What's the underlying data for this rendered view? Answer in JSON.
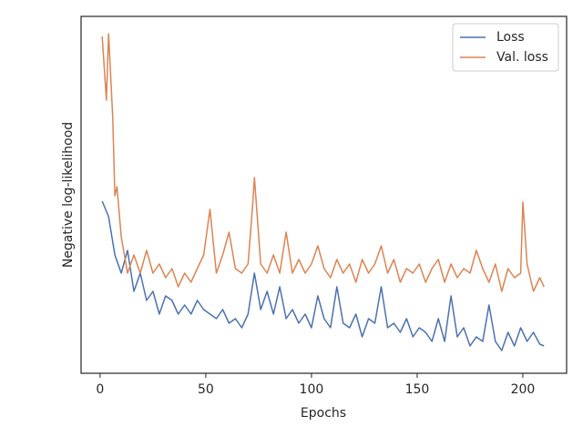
{
  "chart_data": {
    "type": "line",
    "xlabel": "Epochs",
    "ylabel": "Negative log-likelihood",
    "xlim": [
      -9,
      220.7
    ],
    "xticks": [
      0,
      50,
      100,
      150,
      200
    ],
    "ylim": [
      0,
      392
    ],
    "legend": "upper right",
    "series": [
      {
        "name": "Loss",
        "color": "#4c72b0",
        "x": [
          1,
          4,
          7,
          10,
          13,
          16,
          19,
          22,
          25,
          28,
          31,
          34,
          37,
          40,
          43,
          46,
          49,
          52,
          55,
          58,
          61,
          64,
          67,
          70,
          73,
          76,
          79,
          82,
          85,
          88,
          91,
          94,
          97,
          100,
          103,
          106,
          109,
          112,
          115,
          118,
          121,
          124,
          127,
          130,
          133,
          136,
          139,
          142,
          145,
          148,
          151,
          154,
          157,
          160,
          163,
          166,
          169,
          172,
          175,
          178,
          181,
          184,
          187,
          190,
          193,
          196,
          199,
          202,
          205,
          208,
          210
        ],
        "values": [
          189,
          172,
          130,
          110,
          135,
          90,
          110,
          80,
          90,
          65,
          85,
          80,
          65,
          75,
          65,
          80,
          70,
          65,
          60,
          70,
          55,
          60,
          50,
          65,
          110,
          70,
          90,
          65,
          95,
          60,
          70,
          55,
          65,
          50,
          85,
          60,
          50,
          95,
          55,
          50,
          65,
          40,
          60,
          55,
          95,
          50,
          55,
          45,
          60,
          40,
          50,
          45,
          35,
          60,
          35,
          85,
          40,
          50,
          30,
          40,
          35,
          75,
          35,
          25,
          45,
          30,
          50,
          35,
          45,
          32,
          30
        ]
      },
      {
        "name": "Val. loss",
        "color": "#dd8452",
        "x": [
          1,
          3,
          4,
          6,
          7,
          8,
          10,
          13,
          16,
          19,
          22,
          25,
          28,
          31,
          34,
          37,
          40,
          43,
          46,
          49,
          52,
          55,
          58,
          61,
          64,
          67,
          70,
          72,
          73,
          76,
          79,
          82,
          85,
          88,
          91,
          94,
          97,
          100,
          103,
          106,
          109,
          112,
          115,
          118,
          121,
          124,
          127,
          130,
          133,
          136,
          139,
          142,
          145,
          148,
          151,
          154,
          157,
          160,
          163,
          166,
          169,
          172,
          175,
          178,
          181,
          184,
          187,
          190,
          193,
          196,
          199,
          200,
          202,
          205,
          208,
          210
        ],
        "values": [
          370,
          300,
          373,
          280,
          195,
          205,
          150,
          110,
          130,
          110,
          135,
          110,
          120,
          105,
          115,
          95,
          110,
          100,
          115,
          130,
          180,
          110,
          130,
          155,
          115,
          110,
          120,
          180,
          215,
          120,
          110,
          130,
          110,
          155,
          110,
          125,
          110,
          120,
          140,
          115,
          105,
          125,
          110,
          120,
          100,
          125,
          110,
          120,
          140,
          110,
          125,
          100,
          115,
          110,
          120,
          100,
          115,
          125,
          100,
          120,
          105,
          115,
          110,
          135,
          115,
          100,
          120,
          90,
          115,
          105,
          110,
          188,
          120,
          90,
          105,
          95
        ]
      }
    ]
  }
}
